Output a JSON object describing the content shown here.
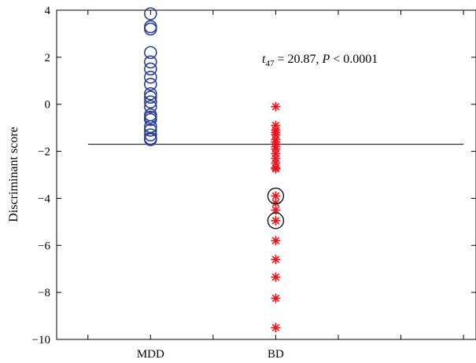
{
  "chart_data": {
    "type": "scatter",
    "title": "",
    "xlabel": "",
    "ylabel": "Discriminant score",
    "categories": [
      "MDD",
      "BD"
    ],
    "ylim": [
      -10,
      4
    ],
    "yticks": [
      4,
      2,
      0,
      -2,
      -4,
      -6,
      -8,
      -10
    ],
    "ytick_labels": [
      "4",
      "2",
      "0",
      "−2",
      "−4",
      "−6",
      "−8",
      "−10"
    ],
    "threshold_line": -1.7,
    "grid": false,
    "series": [
      {
        "category": "MDD",
        "marker": "circle",
        "color": "#2a3f9a",
        "values": [
          3.85,
          3.3,
          3.2,
          2.2,
          1.8,
          1.5,
          1.15,
          0.85,
          0.45,
          0.3,
          0.1,
          -0.1,
          -0.45,
          -0.55,
          -0.65,
          -0.95,
          -1.1,
          -1.3,
          -1.45,
          -1.5
        ]
      },
      {
        "category": "BD",
        "marker": "asterisk",
        "color": "#e8141c",
        "values": [
          -0.1,
          -0.9,
          -1.1,
          -1.2,
          -1.3,
          -1.5,
          -1.6,
          -1.8,
          -1.9,
          -2.1,
          -2.3,
          -2.5,
          -2.7,
          -2.75,
          -3.9,
          -4.2,
          -4.5,
          -4.95,
          -5.8,
          -6.6,
          -7.35,
          -8.25,
          -9.5
        ]
      }
    ],
    "highlighted": [
      {
        "category": "BD",
        "value": -3.9
      },
      {
        "category": "BD",
        "value": -4.95
      }
    ],
    "annotation": {
      "t_symbol": "t",
      "t_subscript": "47",
      "t_rest": " = 20.87,  ",
      "p_symbol": "P",
      "p_rest": " < 0.0001"
    }
  }
}
